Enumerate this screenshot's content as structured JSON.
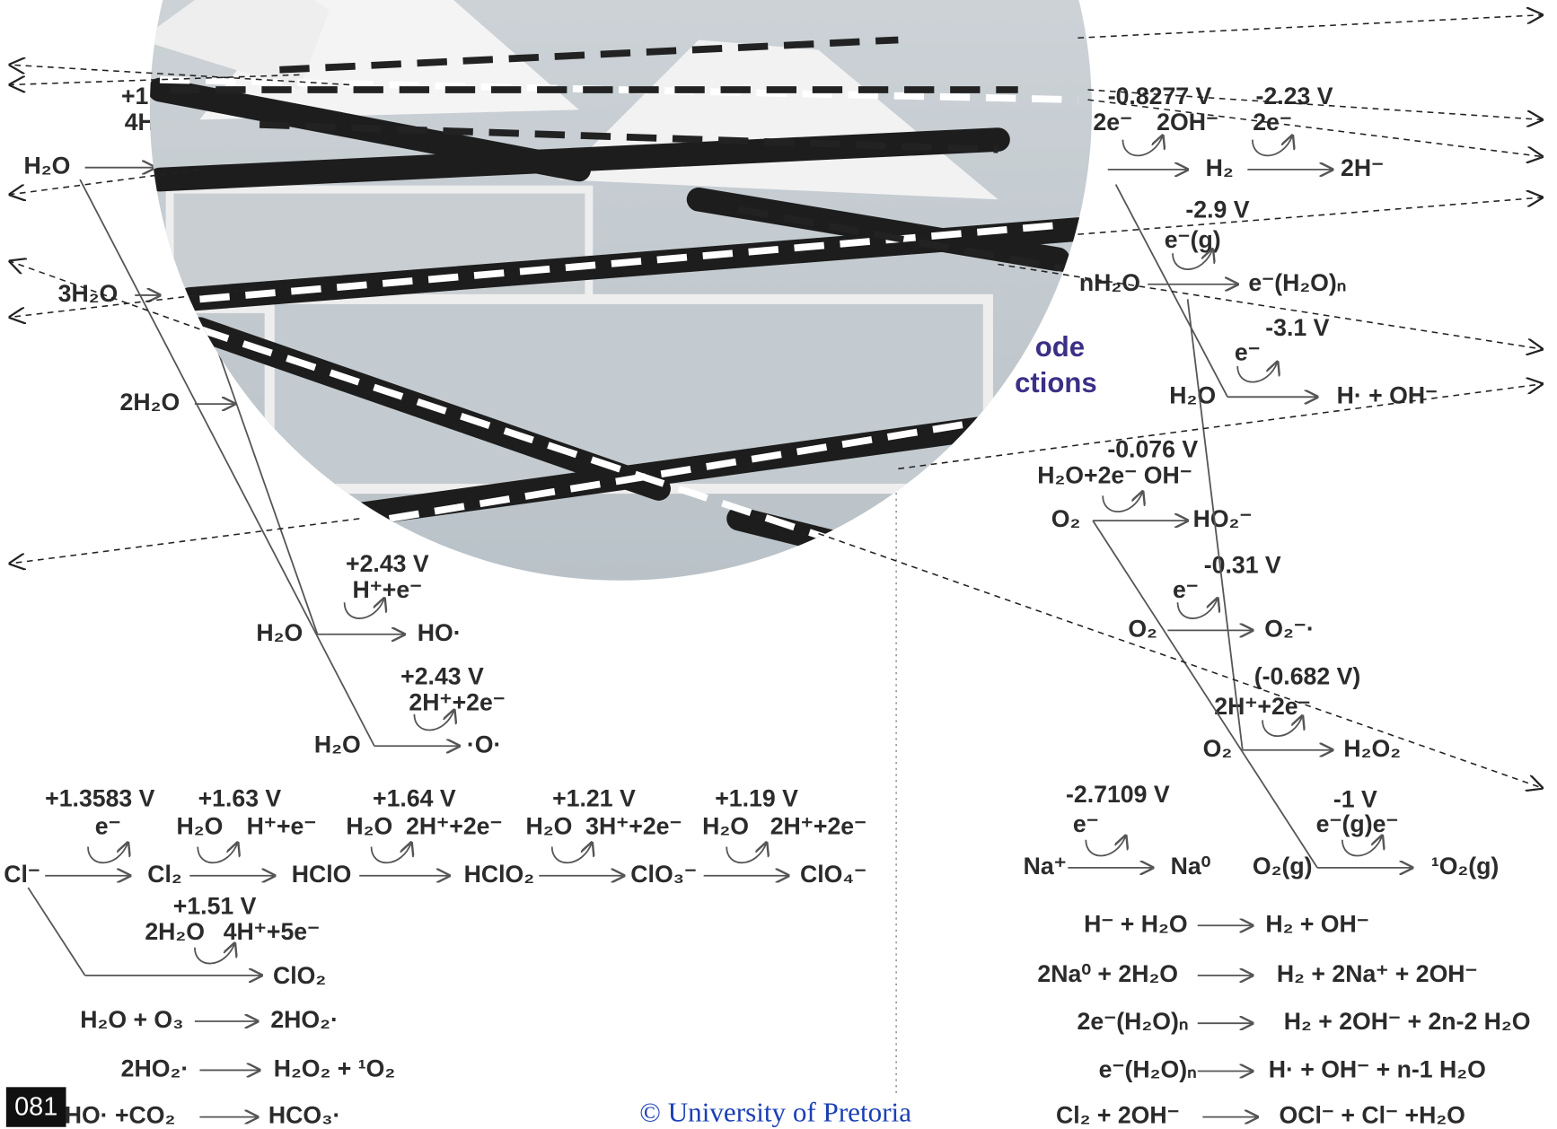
{
  "diagram": {
    "labels": [
      "-0.8277 V",
      "-2.23 V",
      "2e⁻",
      "2OH⁻",
      "2e⁻",
      "H₂",
      "2H⁻",
      "-2.9 V",
      "e⁻(g)",
      "nH₂O",
      "e⁻(H₂O)ₙ",
      "-3.1 V",
      "e⁻",
      "H₂O",
      "H· + OH⁻",
      "-0.076 V",
      "H₂O+2e⁻ OH⁻",
      "O₂",
      "HO₂⁻",
      "-0.31 V",
      "e⁻",
      "O₂",
      "O₂⁻·",
      "(-0.682 V)",
      "2H⁺+2e⁻",
      "O₂",
      "H₂O₂",
      "-2.7109 V",
      "e⁻",
      "-1 V",
      "e⁻(g)e⁻",
      "Na⁺",
      "Na⁰",
      "O₂(g)",
      "¹O₂(g)",
      "H⁻ + H₂O",
      "H₂ + OH⁻",
      "2Na⁰ + 2H₂O",
      "H₂ + 2Na⁺ + 2OH⁻",
      "2e⁻(H₂O)ₙ",
      "H₂ + 2OH⁻ + 2n-2 H₂O",
      "e⁻(H₂O)ₙ",
      "H· + OH⁻ + n-1 H₂O",
      "Cl₂ + 2OH⁻",
      "OCl⁻ + Cl⁻ +H₂O",
      "+1",
      "4H",
      "H₂O",
      "3H₂O",
      "2H₂O",
      "+2.43 V",
      "H⁺+e⁻",
      "H₂O",
      "HO·",
      "+2.43 V",
      "2H⁺+2e⁻",
      "H₂O",
      "·O·",
      "+1.3583 V",
      "+1.63 V",
      "+1.64 V",
      "+1.21 V",
      "+1.19 V",
      "e⁻",
      "H₂O",
      "H⁺+e⁻",
      "H₂O",
      "2H⁺+2e⁻",
      "H₂O",
      "3H⁺+2e⁻",
      "H₂O",
      "2H⁺+2e⁻",
      "Cl⁻",
      "Cl₂",
      "HClO",
      "HClO₂",
      "ClO₃⁻",
      "ClO₄⁻",
      "+1.51 V",
      "2H₂O",
      "4H⁺+5e⁻",
      "ClO₂",
      "H₂O + O₃",
      "2HO₂·",
      "2HO₂·",
      "H₂O₂ + ¹O₂",
      "HO· +CO₂",
      "HCO₃·"
    ],
    "section_fragments": [
      "ode",
      "ctions"
    ],
    "footer": "© University of Pretoria",
    "page_number": "081"
  }
}
